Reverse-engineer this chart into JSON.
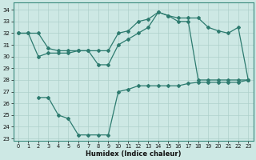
{
  "xlabel": "Humidex (Indice chaleur)",
  "xlim": [
    -0.5,
    23.5
  ],
  "ylim": [
    22.8,
    34.6
  ],
  "yticks": [
    23,
    24,
    25,
    26,
    27,
    28,
    29,
    30,
    31,
    32,
    33,
    34
  ],
  "xticks": [
    0,
    1,
    2,
    3,
    4,
    5,
    6,
    7,
    8,
    9,
    10,
    11,
    12,
    13,
    14,
    15,
    16,
    17,
    18,
    19,
    20,
    21,
    22,
    23
  ],
  "line_color": "#2d7b6f",
  "bg_color": "#cde8e4",
  "grid_color": "#aed0cb",
  "line1_x": [
    0,
    1,
    2,
    3,
    4,
    5,
    6,
    7,
    8,
    9,
    10,
    11,
    12,
    13,
    14,
    15,
    16,
    17,
    18,
    19,
    20,
    21,
    22,
    23
  ],
  "line1_y": [
    32.0,
    32.0,
    32.0,
    30.7,
    30.5,
    30.5,
    30.5,
    30.5,
    30.5,
    30.5,
    32.0,
    32.2,
    33.0,
    33.2,
    33.8,
    33.5,
    33.3,
    33.3,
    33.3,
    32.5,
    32.2,
    32.0,
    32.5,
    28.0
  ],
  "line2_x": [
    0,
    1,
    2,
    3,
    4,
    5,
    6,
    7,
    8,
    9,
    10,
    11,
    12,
    13,
    14,
    15,
    16,
    17,
    18,
    19,
    20,
    21,
    22,
    23
  ],
  "line2_y": [
    32.0,
    32.0,
    30.0,
    30.3,
    30.3,
    30.3,
    30.5,
    30.5,
    29.3,
    29.3,
    31.0,
    31.5,
    32.0,
    32.5,
    33.8,
    33.5,
    33.0,
    33.0,
    28.0,
    28.0,
    28.0,
    28.0,
    28.0,
    28.0
  ],
  "line3_x": [
    2,
    3,
    4,
    5,
    6,
    7,
    8,
    9,
    10,
    11,
    12,
    13,
    14,
    15,
    16,
    17,
    18,
    19,
    20,
    21,
    22,
    23
  ],
  "line3_y": [
    26.5,
    26.5,
    25.0,
    24.7,
    23.3,
    23.3,
    23.3,
    23.3,
    27.0,
    27.2,
    27.5,
    27.5,
    27.5,
    27.5,
    27.5,
    27.7,
    27.8,
    27.8,
    27.8,
    27.8,
    27.8,
    28.0
  ]
}
